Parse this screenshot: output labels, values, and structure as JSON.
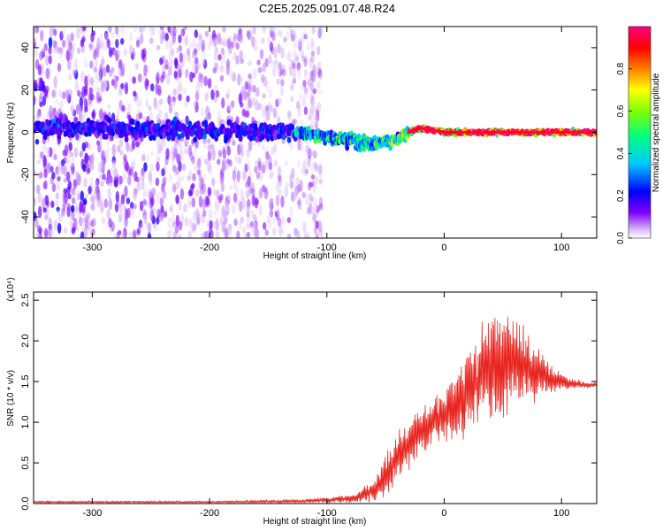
{
  "title": "C2E5.2025.091.07.48.R24",
  "chart_data": [
    {
      "type": "heatmap",
      "xlabel": "Height of straight line (km)",
      "ylabel": "Frequency (Hz)",
      "xlim": [
        -350,
        130
      ],
      "ylim": [
        -50,
        50
      ],
      "x_ticks": [
        -300,
        -200,
        -100,
        0,
        100
      ],
      "y_ticks": [
        -40,
        -20,
        0,
        20,
        40
      ],
      "colorbar": {
        "label": "Normalized spectral amplitude",
        "range": [
          0.0,
          1.0
        ],
        "ticks": [
          0.0,
          0.2,
          0.4,
          0.6,
          0.8
        ],
        "colormap": [
          "#ffffff",
          "#e0c8f8",
          "#7f00ff",
          "#0000ff",
          "#00ffff",
          "#00ff00",
          "#ffff00",
          "#ff8000",
          "#ff0000",
          "#ff0080"
        ]
      },
      "description_points": {
        "noise_region_x": [
          -350,
          -105
        ],
        "ridge_frequency_profile": [
          {
            "x": -350,
            "f": 2
          },
          {
            "x": -200,
            "f": 1
          },
          {
            "x": -120,
            "f": 0
          },
          {
            "x": -90,
            "f": -3
          },
          {
            "x": -60,
            "f": -5
          },
          {
            "x": -40,
            "f": -4
          },
          {
            "x": -30,
            "f": 0
          },
          {
            "x": -20,
            "f": 2
          },
          {
            "x": 0,
            "f": 0
          },
          {
            "x": 130,
            "f": 0
          }
        ]
      }
    },
    {
      "type": "line",
      "xlabel": "Height of straight line (km)",
      "ylabel": "SNR (10 * v/v)",
      "ylabel_scale": "(x10⁴)",
      "xlim": [
        -350,
        130
      ],
      "ylim": [
        0,
        2.6
      ],
      "x_ticks": [
        -300,
        -200,
        -100,
        0,
        100
      ],
      "y_ticks": [
        0.0,
        0.5,
        1.0,
        1.5,
        2.0,
        2.5
      ],
      "series": [
        {
          "color": "#e8251f",
          "envelope_x": [
            -350,
            -200,
            -120,
            -80,
            -60,
            -50,
            -40,
            -30,
            -20,
            -10,
            0,
            10,
            20,
            30,
            40,
            50,
            60,
            70,
            80,
            90,
            100,
            110,
            120,
            130
          ],
          "envelope_mean": [
            0.02,
            0.02,
            0.03,
            0.06,
            0.15,
            0.35,
            0.55,
            0.75,
            0.9,
            1.0,
            1.1,
            1.2,
            1.4,
            1.6,
            1.7,
            1.75,
            1.75,
            1.7,
            1.62,
            1.55,
            1.5,
            1.47,
            1.46,
            1.46
          ],
          "envelope_amp": [
            0.01,
            0.01,
            0.02,
            0.05,
            0.12,
            0.25,
            0.3,
            0.3,
            0.3,
            0.28,
            0.3,
            0.4,
            0.5,
            0.6,
            0.65,
            0.6,
            0.55,
            0.45,
            0.3,
            0.2,
            0.1,
            0.06,
            0.04,
            0.03
          ]
        }
      ]
    }
  ]
}
